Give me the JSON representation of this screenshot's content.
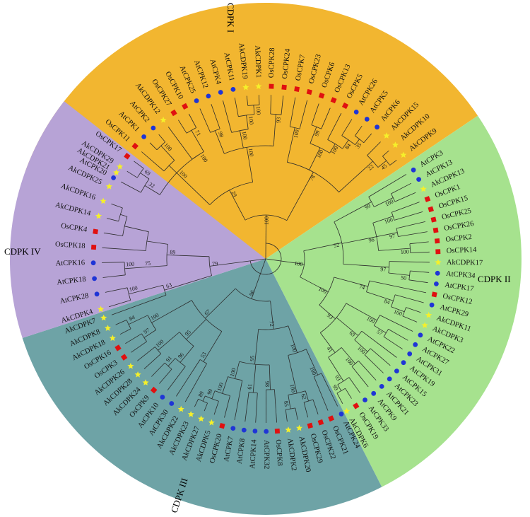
{
  "clades": [
    {
      "label": "CDPK I",
      "color": "#f2b630"
    },
    {
      "label": "CDPK II",
      "color": "#a6e28e"
    },
    {
      "label": "CDPK III",
      "color": "#6ea3a6"
    },
    {
      "label": "CDPK IV",
      "color": "#b7a3d6"
    }
  ],
  "marker_legend": {
    "At": {
      "shape": "circle",
      "color": "#1f35d6"
    },
    "Os": {
      "shape": "square",
      "color": "#e01010"
    },
    "Ak": {
      "shape": "star",
      "color": "#f5f02a"
    }
  },
  "leaves": [
    {
      "name": "AtCPK20",
      "clade": 0,
      "species": "At"
    },
    {
      "name": "AkCDPK29",
      "clade": 0,
      "species": "Ak"
    },
    {
      "name": "OsCPK17",
      "clade": 0,
      "species": "Os"
    },
    {
      "name": "OsCPK11",
      "clade": 0,
      "species": "Os"
    },
    {
      "name": "AtCPK1",
      "clade": 0,
      "species": "At"
    },
    {
      "name": "AtCPK2",
      "clade": 0,
      "species": "At"
    },
    {
      "name": "AkCDPK12",
      "clade": 0,
      "species": "Ak"
    },
    {
      "name": "OsCPK27",
      "clade": 0,
      "species": "Os"
    },
    {
      "name": "OsCPK10",
      "clade": 0,
      "species": "Os"
    },
    {
      "name": "AtCPK25",
      "clade": 0,
      "species": "At"
    },
    {
      "name": "AtCPK12",
      "clade": 0,
      "species": "At"
    },
    {
      "name": "AtCPK4",
      "clade": 0,
      "species": "At"
    },
    {
      "name": "AtCPK11",
      "clade": 0,
      "species": "At"
    },
    {
      "name": "AkCDPK19",
      "clade": 0,
      "species": "Ak"
    },
    {
      "name": "AkCDPK1",
      "clade": 0,
      "species": "Ak"
    },
    {
      "name": "OsCPK28",
      "clade": 0,
      "species": "Os"
    },
    {
      "name": "OsCPK24",
      "clade": 0,
      "species": "Os"
    },
    {
      "name": "OsCPK7",
      "clade": 0,
      "species": "Os"
    },
    {
      "name": "OsCPK23",
      "clade": 0,
      "species": "Os"
    },
    {
      "name": "OsCPK6",
      "clade": 0,
      "species": "Os"
    },
    {
      "name": "OsCPK13",
      "clade": 0,
      "species": "Os"
    },
    {
      "name": "OsCPK5",
      "clade": 0,
      "species": "Os"
    },
    {
      "name": "AtCPK26",
      "clade": 0,
      "species": "At"
    },
    {
      "name": "AtCPK5",
      "clade": 0,
      "species": "At"
    },
    {
      "name": "AtCPK6",
      "clade": 0,
      "species": "At"
    },
    {
      "name": "AkCDPK15",
      "clade": 0,
      "species": "Ak"
    },
    {
      "name": "AkCDPK10",
      "clade": 0,
      "species": "Ak"
    },
    {
      "name": "AkCDPK9",
      "clade": 0,
      "species": "Ak"
    },
    {
      "name": "AtCPK3",
      "clade": 1,
      "species": "At"
    },
    {
      "name": "AtCPK13",
      "clade": 1,
      "species": "At"
    },
    {
      "name": "AkCDPK13",
      "clade": 1,
      "species": "Ak"
    },
    {
      "name": "OsCPK1",
      "clade": 1,
      "species": "Os"
    },
    {
      "name": "OsCPK15",
      "clade": 1,
      "species": "Os"
    },
    {
      "name": "OsCPK25",
      "clade": 1,
      "species": "Os"
    },
    {
      "name": "OsCPK26",
      "clade": 1,
      "species": "Os"
    },
    {
      "name": "OsCPK2",
      "clade": 1,
      "species": "Os"
    },
    {
      "name": "OsCPK14",
      "clade": 1,
      "species": "Os"
    },
    {
      "name": "AkCDPK17",
      "clade": 1,
      "species": "Ak"
    },
    {
      "name": "AtCPK34",
      "clade": 1,
      "species": "At"
    },
    {
      "name": "AtCPK17",
      "clade": 1,
      "species": "At"
    },
    {
      "name": "OsCPK12",
      "clade": 1,
      "species": "Os"
    },
    {
      "name": "AtCPK29",
      "clade": 1,
      "species": "At"
    },
    {
      "name": "AkCDPK11",
      "clade": 1,
      "species": "Ak"
    },
    {
      "name": "AkCDPK3",
      "clade": 1,
      "species": "Ak"
    },
    {
      "name": "AtCPK22",
      "clade": 1,
      "species": "At"
    },
    {
      "name": "AtCPK27",
      "clade": 1,
      "species": "At"
    },
    {
      "name": "AtCPK31",
      "clade": 1,
      "species": "At"
    },
    {
      "name": "AtCPK19",
      "clade": 1,
      "species": "At"
    },
    {
      "name": "AtCPK15",
      "clade": 1,
      "species": "At"
    },
    {
      "name": "AtCPK23",
      "clade": 1,
      "species": "At"
    },
    {
      "name": "AtCPK21",
      "clade": 1,
      "species": "At"
    },
    {
      "name": "AtCPK9",
      "clade": 1,
      "species": "At"
    },
    {
      "name": "AtCPK33",
      "clade": 1,
      "species": "At"
    },
    {
      "name": "OsCPK19",
      "clade": 1,
      "species": "Os"
    },
    {
      "name": "AkCDPK6",
      "clade": 1,
      "species": "Ak"
    },
    {
      "name": "AtCPK24",
      "clade": 2,
      "species": "At"
    },
    {
      "name": "OsCPK21",
      "clade": 2,
      "species": "Os"
    },
    {
      "name": "OsCPK22",
      "clade": 2,
      "species": "Os"
    },
    {
      "name": "OsCPK29",
      "clade": 2,
      "species": "Os"
    },
    {
      "name": "AkCDPK20",
      "clade": 2,
      "species": "Ak"
    },
    {
      "name": "AkCDPK2",
      "clade": 2,
      "species": "Ak"
    },
    {
      "name": "OsCPK8",
      "clade": 2,
      "species": "Os"
    },
    {
      "name": "AtCPK32",
      "clade": 2,
      "species": "At"
    },
    {
      "name": "AtCPK14",
      "clade": 2,
      "species": "At"
    },
    {
      "name": "AtCPK8",
      "clade": 2,
      "species": "At"
    },
    {
      "name": "AtCPK7",
      "clade": 2,
      "species": "At"
    },
    {
      "name": "OsCPK20",
      "clade": 2,
      "species": "Os"
    },
    {
      "name": "AkCDPK5",
      "clade": 2,
      "species": "Ak"
    },
    {
      "name": "AkCDPK27",
      "clade": 2,
      "species": "Ak"
    },
    {
      "name": "AkCDPK23",
      "clade": 2,
      "species": "Ak"
    },
    {
      "name": "AkCDPK22",
      "clade": 2,
      "species": "Ak"
    },
    {
      "name": "AtCPK30",
      "clade": 2,
      "species": "At"
    },
    {
      "name": "AtCPK10",
      "clade": 2,
      "species": "At"
    },
    {
      "name": "OsCPK9",
      "clade": 2,
      "species": "Os"
    },
    {
      "name": "AkCDPK24",
      "clade": 2,
      "species": "Ak"
    },
    {
      "name": "AkCDPK28",
      "clade": 2,
      "species": "Ak"
    },
    {
      "name": "AkCDPK26",
      "clade": 2,
      "species": "Ak"
    },
    {
      "name": "OsCPK3",
      "clade": 2,
      "species": "Os"
    },
    {
      "name": "OsCPK16",
      "clade": 2,
      "species": "Os"
    },
    {
      "name": "AkCDPK18",
      "clade": 2,
      "species": "Ak"
    },
    {
      "name": "AkCDPK8",
      "clade": 2,
      "species": "Ak"
    },
    {
      "name": "AkCDPK7",
      "clade": 2,
      "species": "Ak"
    },
    {
      "name": "AkCDPK4",
      "clade": 3,
      "species": "Ak"
    },
    {
      "name": "AtCPK28",
      "clade": 3,
      "species": "At"
    },
    {
      "name": "AtCPK18",
      "clade": 3,
      "species": "At"
    },
    {
      "name": "AtCPK16",
      "clade": 3,
      "species": "At"
    },
    {
      "name": "OsCPK18",
      "clade": 3,
      "species": "Os"
    },
    {
      "name": "OsCPK4",
      "clade": 3,
      "species": "Os"
    },
    {
      "name": "AkCDPK14",
      "clade": 3,
      "species": "Ak"
    },
    {
      "name": "AkCDPK16",
      "clade": 3,
      "species": "Ak"
    },
    {
      "name": "AkCDPK25",
      "clade": 3,
      "species": "Ak"
    },
    {
      "name": "AkCDPK21",
      "clade": 3,
      "species": "Ak"
    }
  ],
  "bootstrap_values": [
    "100",
    "29",
    "100",
    "32",
    "69",
    "100",
    "100",
    "71",
    "100",
    "98",
    "100",
    "100",
    "100",
    "93",
    "78",
    "100",
    "100",
    "99",
    "100",
    "84",
    "35",
    "22",
    "45",
    "100",
    "52",
    "99",
    "100",
    "96",
    "100",
    "97",
    "100",
    "97",
    "50",
    "100",
    "74",
    "84",
    "100",
    "93",
    "100",
    "57",
    "69",
    "100",
    "41",
    "100",
    "93",
    "99",
    "96",
    "72",
    "100",
    "100",
    "100",
    "62",
    "85",
    "95",
    "98",
    "61",
    "100",
    "100",
    "99",
    "89",
    "67",
    "53",
    "95",
    "96",
    "91",
    "100",
    "100",
    "97",
    "84",
    "79",
    "63",
    "100",
    "89",
    "75",
    "100"
  ]
}
